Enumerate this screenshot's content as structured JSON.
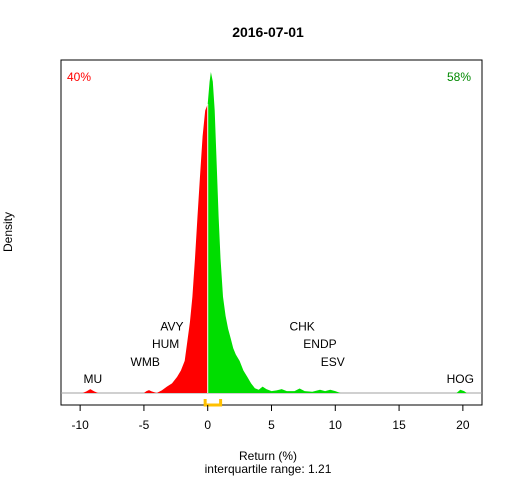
{
  "chart_data": {
    "type": "area",
    "title": "2016-07-01",
    "xlabel": "Return (%)",
    "subtitle": "interquartile range: 1.21",
    "ylabel": "Density",
    "xlim": [
      -11.5,
      21.5
    ],
    "ylim": [
      0,
      1
    ],
    "x_ticks": [
      -10,
      -5,
      0,
      5,
      10,
      15,
      20
    ],
    "pct_negative": "40%",
    "pct_positive": "58%",
    "colors": {
      "negative": "#ff0000",
      "positive": "#00dd00",
      "iqr_bracket": "#ffc000",
      "axis": "#000000",
      "baseline": "#a0a0a0"
    },
    "density": [
      [
        -9.8,
        0
      ],
      [
        -9.5,
        0.005
      ],
      [
        -9.2,
        0.012
      ],
      [
        -8.9,
        0.005
      ],
      [
        -8.6,
        0
      ],
      [
        -5.0,
        0
      ],
      [
        -4.8,
        0.006
      ],
      [
        -4.6,
        0.009
      ],
      [
        -4.4,
        0.005
      ],
      [
        -4.0,
        0
      ],
      [
        -3.6,
        0.008
      ],
      [
        -3.2,
        0.02
      ],
      [
        -2.8,
        0.03
      ],
      [
        -2.4,
        0.05
      ],
      [
        -2.1,
        0.07
      ],
      [
        -1.8,
        0.1
      ],
      [
        -1.6,
        0.16
      ],
      [
        -1.4,
        0.22
      ],
      [
        -1.2,
        0.3
      ],
      [
        -1.0,
        0.42
      ],
      [
        -0.8,
        0.55
      ],
      [
        -0.6,
        0.68
      ],
      [
        -0.4,
        0.8
      ],
      [
        -0.2,
        0.88
      ],
      [
        0.0,
        0.9
      ],
      [
        0.15,
        0.97
      ],
      [
        0.25,
        1.0
      ],
      [
        0.4,
        0.97
      ],
      [
        0.55,
        0.88
      ],
      [
        0.7,
        0.72
      ],
      [
        0.85,
        0.55
      ],
      [
        1.0,
        0.42
      ],
      [
        1.2,
        0.3
      ],
      [
        1.4,
        0.24
      ],
      [
        1.6,
        0.2
      ],
      [
        1.8,
        0.17
      ],
      [
        2.0,
        0.14
      ],
      [
        2.2,
        0.12
      ],
      [
        2.5,
        0.1
      ],
      [
        2.8,
        0.07
      ],
      [
        3.1,
        0.05
      ],
      [
        3.4,
        0.03
      ],
      [
        3.7,
        0.015
      ],
      [
        4.0,
        0.01
      ],
      [
        4.3,
        0.02
      ],
      [
        4.6,
        0.012
      ],
      [
        5.0,
        0.006
      ],
      [
        5.4,
        0.008
      ],
      [
        5.8,
        0.012
      ],
      [
        6.2,
        0.006
      ],
      [
        6.8,
        0.006
      ],
      [
        7.2,
        0.014
      ],
      [
        7.6,
        0.006
      ],
      [
        8.2,
        0.004
      ],
      [
        8.8,
        0.01
      ],
      [
        9.2,
        0.006
      ],
      [
        9.6,
        0.01
      ],
      [
        10.0,
        0.006
      ],
      [
        10.4,
        0
      ],
      [
        19.5,
        0
      ],
      [
        19.8,
        0.01
      ],
      [
        20.1,
        0.006
      ],
      [
        20.3,
        0
      ]
    ],
    "iqr": [
      -0.2,
      1.01
    ],
    "annotations": [
      {
        "text": "MU",
        "x": -9.0,
        "y": 0.043
      },
      {
        "text": "WMB",
        "x": -4.9,
        "y": 0.097
      },
      {
        "text": "HUM",
        "x": -3.3,
        "y": 0.152
      },
      {
        "text": "AVY",
        "x": -2.8,
        "y": 0.207
      },
      {
        "text": "CHK",
        "x": 7.4,
        "y": 0.207
      },
      {
        "text": "ENDP",
        "x": 8.8,
        "y": 0.152
      },
      {
        "text": "ESV",
        "x": 9.8,
        "y": 0.097
      },
      {
        "text": "HOG",
        "x": 19.8,
        "y": 0.043
      }
    ]
  }
}
